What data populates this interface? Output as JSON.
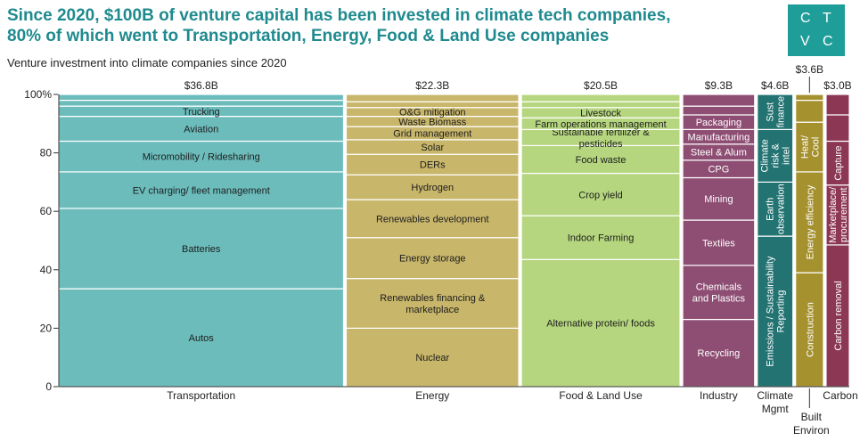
{
  "title_line1": "Since 2020, $100B of venture capital has been invested in climate tech companies,",
  "title_line2": "80% of which went to Transportation, Energy, Food & Land Use companies",
  "subtitle": "Venture investment into climate companies since 2020",
  "logo": {
    "l1": "C",
    "l2": "T",
    "l3": "V",
    "l4": "C"
  },
  "chart_data": {
    "type": "marimekko",
    "ylim": [
      0,
      100
    ],
    "y_ticks": [
      "0",
      "20",
      "40",
      "60",
      "80",
      "100%"
    ],
    "categories": [
      {
        "name": "Transportation",
        "total": 36.8,
        "total_label": "$36.8B",
        "color": "#6cbcbc",
        "segments": [
          {
            "label": "Autos",
            "value": 33.5
          },
          {
            "label": "Batteries",
            "value": 27.5
          },
          {
            "label": "EV charging/ fleet management",
            "value": 12.5
          },
          {
            "label": "Micromobility / Ridesharing",
            "value": 10.5
          },
          {
            "label": "Aviation",
            "value": 8.5
          },
          {
            "label": "Trucking",
            "value": 3.5
          },
          {
            "label": "",
            "value": 2
          },
          {
            "label": "",
            "value": 2
          }
        ]
      },
      {
        "name": "Energy",
        "total": 22.3,
        "total_label": "$22.3B",
        "color": "#c8b66a",
        "segments": [
          {
            "label": "Nuclear",
            "value": 20
          },
          {
            "label": "Renewables financing & marketplace",
            "value": 17
          },
          {
            "label": "Energy storage",
            "value": 14
          },
          {
            "label": "Renewables development",
            "value": 13
          },
          {
            "label": "Hydrogen",
            "value": 8.5
          },
          {
            "label": "DERs",
            "value": 7
          },
          {
            "label": "Solar",
            "value": 5
          },
          {
            "label": "Grid management",
            "value": 4.5
          },
          {
            "label": "Waste Biomass",
            "value": 3.5
          },
          {
            "label": "O&G mitigation",
            "value": 3
          },
          {
            "label": "",
            "value": 2
          },
          {
            "label": "",
            "value": 2.5
          }
        ]
      },
      {
        "name": "Food & Land Use",
        "total": 20.5,
        "total_label": "$20.5B",
        "color": "#b5d67e",
        "segments": [
          {
            "label": "Alternative protein/ foods",
            "value": 43.5
          },
          {
            "label": "Indoor Farming",
            "value": 15
          },
          {
            "label": "Crop yield",
            "value": 14.5
          },
          {
            "label": "Food waste",
            "value": 9.5
          },
          {
            "label": "Sustainable fertilizer & pesticides",
            "value": 5.5
          },
          {
            "label": "Farm operations management",
            "value": 4
          },
          {
            "label": "Livestock",
            "value": 3.5
          },
          {
            "label": "",
            "value": 2
          },
          {
            "label": "",
            "value": 2.5
          }
        ]
      },
      {
        "name": "Industry",
        "total": 9.3,
        "total_label": "$9.3B",
        "color": "#8e4e73",
        "segments": [
          {
            "label": "Recycling",
            "value": 23
          },
          {
            "label": "Chemicals and Plastics",
            "value": 18.5
          },
          {
            "label": "Textiles",
            "value": 15.5
          },
          {
            "label": "Mining",
            "value": 14.5
          },
          {
            "label": "CPG",
            "value": 6
          },
          {
            "label": "Steel & Alum",
            "value": 5.5
          },
          {
            "label": "Manufacturing",
            "value": 5
          },
          {
            "label": "Packaging",
            "value": 5
          },
          {
            "label": "",
            "value": 3
          },
          {
            "label": "",
            "value": 4
          }
        ]
      },
      {
        "name": "Climate Mgmt",
        "total": 4.6,
        "total_label": "$4.6B",
        "color": "#237372",
        "segments": [
          {
            "label": "Emissions / Sustainability Reporting",
            "value": 51.5
          },
          {
            "label": "Earth observation",
            "value": 18.5
          },
          {
            "label": "Climate risk & intel",
            "value": 18
          },
          {
            "label": "Sust finance",
            "value": 12
          }
        ]
      },
      {
        "name": "Built Environ",
        "total": 3.6,
        "total_label": "$3.6B",
        "color": "#a6912f",
        "segments": [
          {
            "label": "Construction",
            "value": 39
          },
          {
            "label": "Energy efficiency",
            "value": 34.5
          },
          {
            "label": "Heat/ Cool",
            "value": 17
          },
          {
            "label": "",
            "value": 7.5
          },
          {
            "label": "",
            "value": 2
          }
        ]
      },
      {
        "name": "Carbon",
        "total": 3.0,
        "total_label": "$3.0B",
        "color": "#8c3753",
        "segments": [
          {
            "label": "Carbon removal",
            "value": 48.5
          },
          {
            "label": "Marketplace/ procurement",
            "value": 20.5
          },
          {
            "label": "Capture",
            "value": 15
          },
          {
            "label": "",
            "value": 9
          },
          {
            "label": "",
            "value": 7
          }
        ]
      }
    ]
  }
}
